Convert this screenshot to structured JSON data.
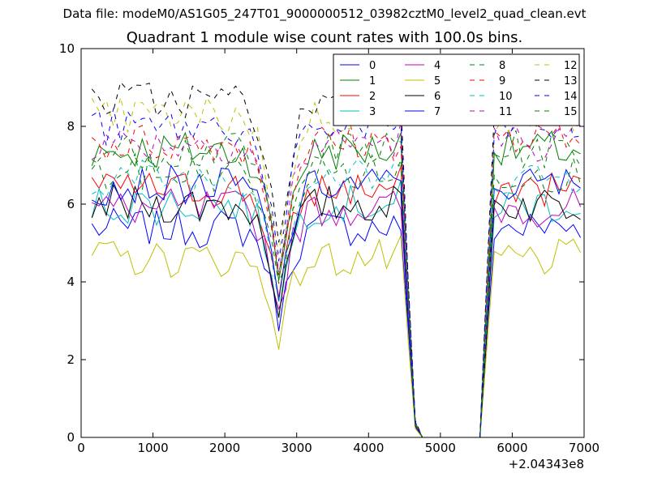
{
  "chart_data": {
    "type": "line",
    "suptitle": "Data file: modeM0/AS1G05_247T01_9000000512_03982cztM0_level2_quad_clean.evt",
    "title": "Quadrant 1 module wise count rates with 100.0s bins.",
    "xlabel": "",
    "ylabel": "",
    "x_offset_label": "+2.04343e8",
    "xlim": [
      0,
      7000
    ],
    "ylim": [
      0,
      10
    ],
    "xticks": [
      "0",
      "1000",
      "2000",
      "3000",
      "4000",
      "5000",
      "6000",
      "7000"
    ],
    "yticks": [
      "0",
      "2",
      "4",
      "6",
      "8",
      "10"
    ],
    "grid": false,
    "legend_position": "top-right",
    "legend_columns": 4,
    "x": [
      150,
      250,
      350,
      450,
      550,
      650,
      750,
      850,
      950,
      1050,
      1150,
      1250,
      1350,
      1450,
      1550,
      1650,
      1750,
      1850,
      1950,
      2050,
      2150,
      2250,
      2350,
      2450,
      2550,
      2650,
      2750,
      2850,
      2950,
      3050,
      3150,
      3250,
      3350,
      3450,
      3550,
      3650,
      3750,
      3850,
      3950,
      4050,
      4150,
      4250,
      4350,
      4450,
      4550,
      4650,
      4750,
      4850,
      4950,
      5050,
      5150,
      5250,
      5350,
      5450,
      5550,
      5650,
      5750,
      5850,
      5950,
      6050,
      6150,
      6250,
      6350,
      6450,
      6550,
      6650,
      6750,
      6850,
      6950
    ],
    "series": [
      {
        "name": "0",
        "color": "#0000ff",
        "dash": "solid"
      },
      {
        "name": "1",
        "color": "#008000",
        "dash": "solid"
      },
      {
        "name": "2",
        "color": "#ff0000",
        "dash": "solid"
      },
      {
        "name": "3",
        "color": "#00bfbf",
        "dash": "solid"
      },
      {
        "name": "4",
        "color": "#bf00bf",
        "dash": "solid"
      },
      {
        "name": "5",
        "color": "#bfbf00",
        "dash": "solid"
      },
      {
        "name": "6",
        "color": "#000000",
        "dash": "solid"
      },
      {
        "name": "7",
        "color": "#0000ff",
        "dash": "solid"
      },
      {
        "name": "8",
        "color": "#008000",
        "dash": "dashed"
      },
      {
        "name": "9",
        "color": "#ff0000",
        "dash": "dashed"
      },
      {
        "name": "10",
        "color": "#00bfbf",
        "dash": "dashed"
      },
      {
        "name": "11",
        "color": "#bf00bf",
        "dash": "dashed"
      },
      {
        "name": "12",
        "color": "#bfbf00",
        "dash": "dashed"
      },
      {
        "name": "13",
        "color": "#000000",
        "dash": "dashed"
      },
      {
        "name": "14",
        "color": "#0000ff",
        "dash": "dashed"
      },
      {
        "name": "15",
        "color": "#008000",
        "dash": "dashed"
      }
    ],
    "profile": [
      1.0,
      1.0,
      0.99,
      1.0,
      1.0,
      0.99,
      1.0,
      1.0,
      1.0,
      0.99,
      1.0,
      1.0,
      0.99,
      1.0,
      1.0,
      0.99,
      1.0,
      1.0,
      1.0,
      0.99,
      1.0,
      0.99,
      0.97,
      0.93,
      0.85,
      0.72,
      0.55,
      0.7,
      0.85,
      0.93,
      0.97,
      0.99,
      1.0,
      1.0,
      0.99,
      1.0,
      1.0,
      1.0,
      1.0,
      1.0,
      1.0,
      1.0,
      1.0,
      1.02,
      0.5,
      0.05,
      0.0,
      0.0,
      0.0,
      0.0,
      0.0,
      0.0,
      0.0,
      0.0,
      0.0,
      0.5,
      1.0,
      1.0,
      1.0,
      1.0,
      1.0,
      1.0,
      1.0,
      1.0,
      1.0,
      1.0,
      1.0,
      1.0,
      1.0
    ],
    "base_levels": [
      5.4,
      7.4,
      6.4,
      6.0,
      5.9,
      4.6,
      6.0,
      6.5,
      7.4,
      7.6,
      6.7,
      7.6,
      8.3,
      8.7,
      8.0,
      6.8
    ],
    "noise_amplitude": 0.25
  }
}
